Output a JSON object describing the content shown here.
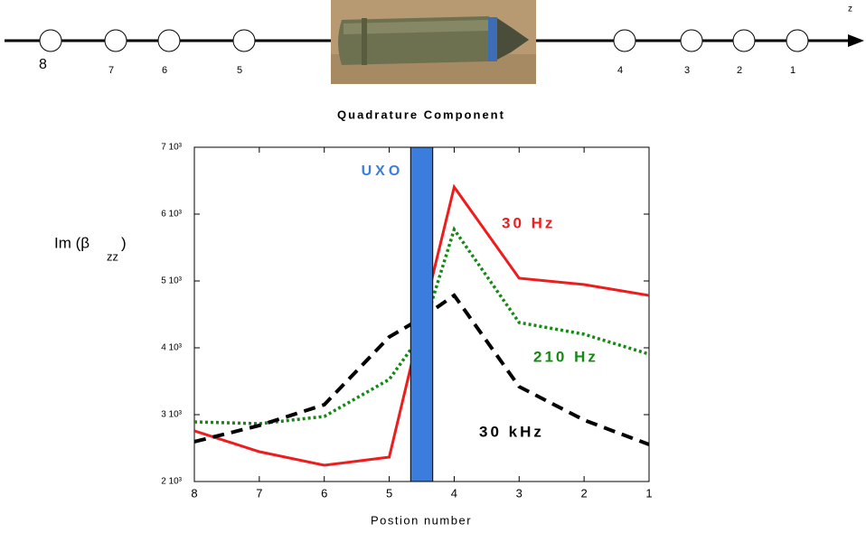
{
  "diagram": {
    "positions": [
      "8",
      "7",
      "6",
      "5",
      "4",
      "3",
      "2",
      "1"
    ],
    "axis_label": "z"
  },
  "chart_data": {
    "type": "line",
    "title": "Quadrature Component",
    "xlabel": "Postion number",
    "ylabel": {
      "main": "Im (β",
      "sub": "zz",
      "close": ")"
    },
    "x": [
      8,
      7,
      6,
      5,
      4.5,
      4,
      3,
      2,
      1
    ],
    "series": [
      {
        "name": "30 Hz",
        "color": "#ee1c1c",
        "style": "solid",
        "values": [
          2757,
          2446,
          2243,
          2365,
          4400,
          6405,
          5041,
          4946,
          4784
        ]
      },
      {
        "name": "210 Hz",
        "color": "#138a13",
        "style": "dotted",
        "values": [
          2892,
          2865,
          2973,
          3527,
          4203,
          5770,
          4378,
          4203,
          3905
        ]
      },
      {
        "name": "30 kHz",
        "color": "#000000",
        "style": "dashed",
        "values": [
          2595,
          2838,
          3149,
          4162,
          4446,
          4784,
          3419,
          2919,
          2554
        ]
      }
    ],
    "band": {
      "label": "UXO",
      "x": [
        4.67,
        4.33
      ],
      "color": "#3b7ddd"
    },
    "xlim": [
      8,
      1
    ],
    "xticks": [
      8,
      7,
      6,
      5,
      4,
      3,
      2,
      1
    ],
    "ylim": [
      2000,
      7000
    ],
    "yticks": [
      {
        "value": 2000,
        "label": "2 10³"
      },
      {
        "value": 3000,
        "label": "3 10³"
      },
      {
        "value": 4000,
        "label": "4 10³"
      },
      {
        "value": 5000,
        "label": "5 10³"
      },
      {
        "value": 6000,
        "label": "6 10³"
      },
      {
        "value": 7000,
        "label": "7 10³"
      }
    ]
  }
}
